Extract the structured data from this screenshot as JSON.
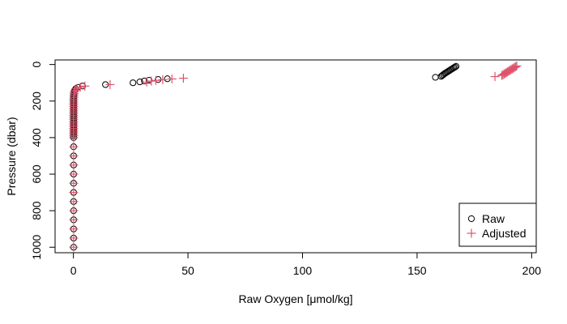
{
  "chart_data": {
    "type": "scatter",
    "xlabel": "Raw Oxygen [μmol/kg]",
    "ylabel": "Pressure (dbar)",
    "xlim": [
      -8,
      202
    ],
    "ylim": [
      1030,
      -25
    ],
    "y_reversed": true,
    "x_ticks": [
      0,
      50,
      100,
      150,
      200
    ],
    "y_ticks": [
      0,
      200,
      400,
      600,
      800,
      1000
    ],
    "grid": false,
    "legend_position": "bottom-right",
    "colors": {
      "raw": "#000000",
      "adjusted": "#df536b",
      "axis": "#000000"
    },
    "series": [
      {
        "name": "Raw",
        "marker": "open-circle",
        "points": [
          [
            167,
            10
          ],
          [
            166.5,
            14
          ],
          [
            166,
            18
          ],
          [
            165.5,
            22
          ],
          [
            165,
            26
          ],
          [
            164.5,
            30
          ],
          [
            164,
            34
          ],
          [
            163.5,
            38
          ],
          [
            163,
            42
          ],
          [
            162.5,
            46
          ],
          [
            162,
            50
          ],
          [
            161.5,
            55
          ],
          [
            161,
            60
          ],
          [
            160.5,
            65
          ],
          [
            158,
            70
          ],
          [
            41,
            78
          ],
          [
            37,
            82
          ],
          [
            33,
            86
          ],
          [
            31,
            90
          ],
          [
            29,
            95
          ],
          [
            26,
            100
          ],
          [
            14,
            110
          ],
          [
            4,
            118
          ],
          [
            2,
            125
          ],
          [
            1,
            133
          ],
          [
            0.5,
            142
          ],
          [
            0.3,
            150
          ],
          [
            0.2,
            160
          ],
          [
            0.2,
            170
          ],
          [
            0.1,
            180
          ],
          [
            0.1,
            190
          ],
          [
            0.1,
            200
          ],
          [
            0.1,
            210
          ],
          [
            0.1,
            220
          ],
          [
            0.1,
            230
          ],
          [
            0.1,
            240
          ],
          [
            0.1,
            250
          ],
          [
            0.1,
            260
          ],
          [
            0.1,
            270
          ],
          [
            0.1,
            280
          ],
          [
            0.1,
            290
          ],
          [
            0.1,
            300
          ],
          [
            0.1,
            310
          ],
          [
            0.1,
            320
          ],
          [
            0.1,
            330
          ],
          [
            0.1,
            340
          ],
          [
            0.1,
            350
          ],
          [
            0.1,
            360
          ],
          [
            0.1,
            370
          ],
          [
            0.1,
            380
          ],
          [
            0.1,
            390
          ],
          [
            0.1,
            400
          ],
          [
            0.1,
            450
          ],
          [
            0.1,
            500
          ],
          [
            0.1,
            550
          ],
          [
            0.1,
            600
          ],
          [
            0.1,
            650
          ],
          [
            0.1,
            700
          ],
          [
            0.1,
            750
          ],
          [
            0.1,
            800
          ],
          [
            0.1,
            850
          ],
          [
            0.1,
            900
          ],
          [
            0.1,
            950
          ],
          [
            0.1,
            1000
          ]
        ]
      },
      {
        "name": "Adjusted",
        "marker": "plus",
        "points": [
          [
            193.5,
            8
          ],
          [
            193,
            12
          ],
          [
            192.5,
            16
          ],
          [
            192,
            20
          ],
          [
            191.5,
            24
          ],
          [
            191,
            28
          ],
          [
            190.5,
            32
          ],
          [
            190,
            36
          ],
          [
            189.5,
            40
          ],
          [
            189,
            44
          ],
          [
            188.5,
            48
          ],
          [
            188,
            52
          ],
          [
            187.5,
            56
          ],
          [
            187,
            60
          ],
          [
            184,
            66
          ],
          [
            48,
            75
          ],
          [
            43,
            79
          ],
          [
            39,
            83
          ],
          [
            36,
            87
          ],
          [
            34,
            91
          ],
          [
            32,
            96
          ],
          [
            16,
            110
          ],
          [
            5,
            118
          ],
          [
            3,
            124
          ],
          [
            1.5,
            132
          ],
          [
            0.8,
            141
          ],
          [
            0.4,
            150
          ],
          [
            0.3,
            160
          ],
          [
            0.2,
            170
          ],
          [
            0.2,
            180
          ],
          [
            0.1,
            190
          ],
          [
            0.1,
            200
          ],
          [
            0.1,
            210
          ],
          [
            0.1,
            220
          ],
          [
            0.1,
            230
          ],
          [
            0.1,
            240
          ],
          [
            0.1,
            250
          ],
          [
            0.1,
            260
          ],
          [
            0.1,
            270
          ],
          [
            0.1,
            280
          ],
          [
            0.1,
            290
          ],
          [
            0.1,
            300
          ],
          [
            0.1,
            310
          ],
          [
            0.1,
            320
          ],
          [
            0.1,
            330
          ],
          [
            0.1,
            340
          ],
          [
            0.1,
            350
          ],
          [
            0.1,
            360
          ],
          [
            0.1,
            370
          ],
          [
            0.1,
            380
          ],
          [
            0.1,
            390
          ],
          [
            0.1,
            400
          ],
          [
            0.1,
            450
          ],
          [
            0.1,
            500
          ],
          [
            0.1,
            550
          ],
          [
            0.1,
            600
          ],
          [
            0.1,
            650
          ],
          [
            0.1,
            700
          ],
          [
            0.1,
            750
          ],
          [
            0.1,
            800
          ],
          [
            0.1,
            850
          ],
          [
            0.1,
            900
          ],
          [
            0.1,
            950
          ],
          [
            0.1,
            1000
          ]
        ]
      }
    ]
  }
}
